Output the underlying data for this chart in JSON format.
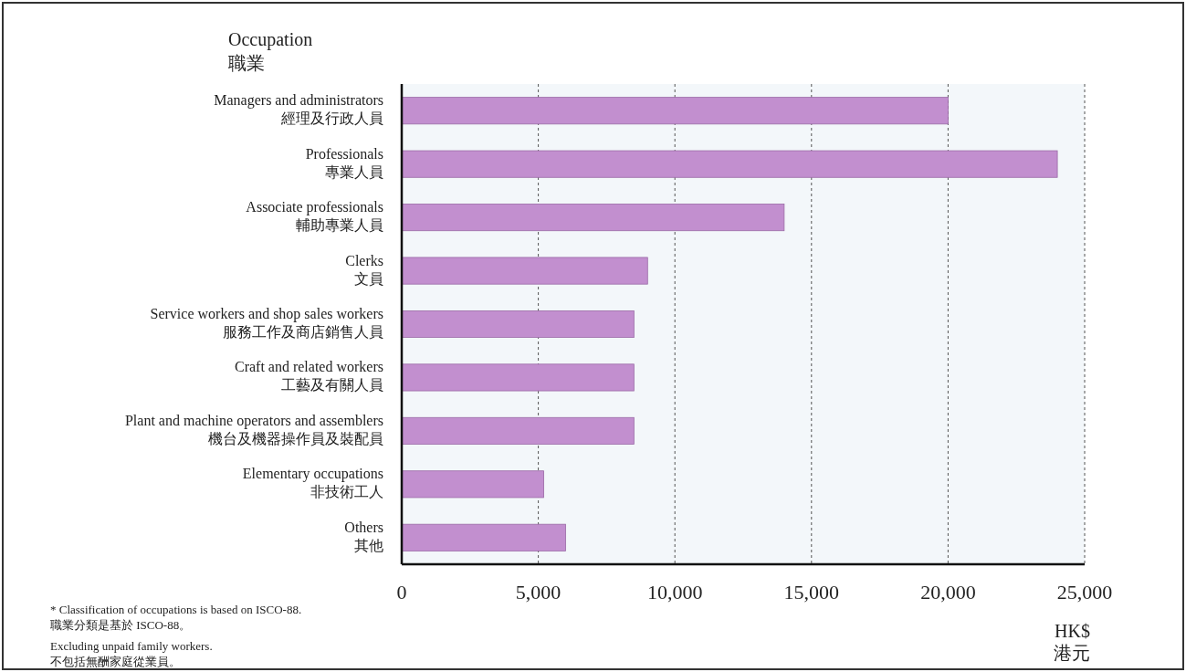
{
  "chart_data": {
    "type": "bar",
    "orientation": "horizontal",
    "categories": [
      "Managers and administrators\n經理及行政人員",
      "Professionals\n專業人員",
      "Associate professionals\n輔助專業人員",
      "Clerks\n文員",
      "Service workers and shop sales workers\n服務工作及商店銷售人員",
      "Craft and related workers\n工藝及有關人員",
      "Plant and machine operators and assemblers\n機台及機器操作員及裝配員",
      "Elementary occupations\n非技術工人",
      "Others\n其他"
    ],
    "values": [
      20000,
      24000,
      14000,
      9000,
      8500,
      8500,
      8500,
      5200,
      6000
    ],
    "color": "#c28fcf",
    "xlim": [
      0,
      25000
    ],
    "xticks": [
      0,
      {
        "value": 5000,
        "label": "5,000"
      },
      {
        "value": 10000,
        "label": "10,000"
      },
      {
        "value": 15000,
        "label": "15,000"
      },
      {
        "value": 20000,
        "label": "20,000"
      },
      {
        "value": 25000,
        "label": "25,000"
      }
    ],
    "xlabel": "HK$\n港元",
    "ylabel": "Occupation\n職業",
    "grid": "x",
    "annotations": [
      "*  Classification of occupations is based on ISCO-88.\n職業分類是基於  ISCO-88。",
      "Excluding unpaid family workers.\n不包括無酬家庭從業員。"
    ]
  }
}
